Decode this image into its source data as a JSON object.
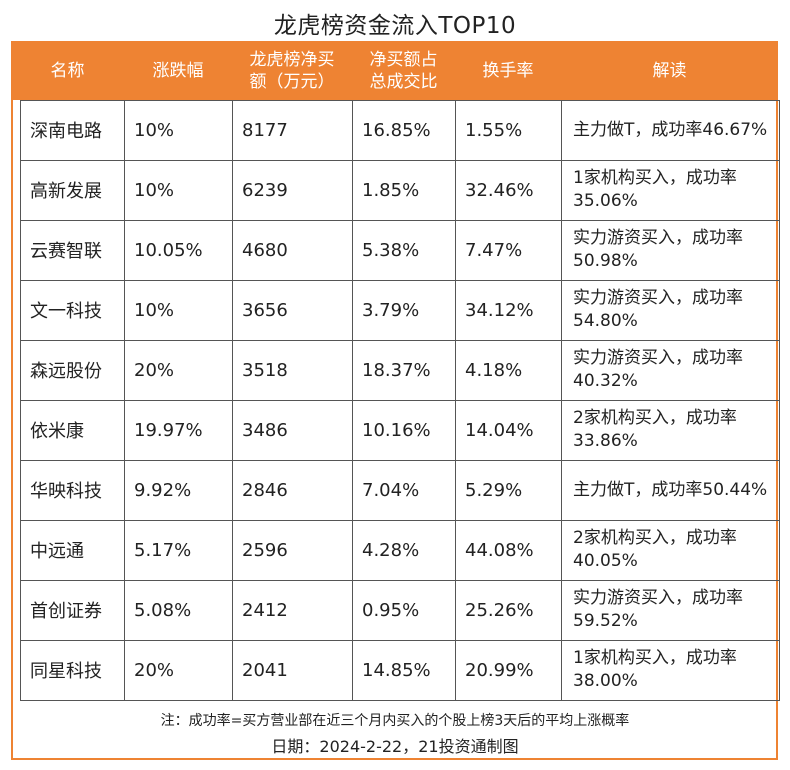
{
  "title": "龙虎榜资金流入TOP10",
  "headers": [
    "名称",
    "涨跌幅",
    "龙虎榜净买额（万元）",
    "净买额占总成交比",
    "换手率",
    "解读"
  ],
  "rows": [
    [
      "深南电路",
      "10%",
      "8177",
      "16.85%",
      "1.55%",
      "主力做T，成功率46.67%"
    ],
    [
      "高新发展",
      "10%",
      "6239",
      "1.85%",
      "32.46%",
      "1家机构买入，成功率35.06%"
    ],
    [
      "云赛智联",
      "10.05%",
      "4680",
      "5.38%",
      "7.47%",
      "实力游资买入，成功率50.98%"
    ],
    [
      "文一科技",
      "10%",
      "3656",
      "3.79%",
      "34.12%",
      "实力游资买入，成功率54.80%"
    ],
    [
      "森远股份",
      "20%",
      "3518",
      "18.37%",
      "4.18%",
      "实力游资买入，成功率40.32%"
    ],
    [
      "依米康",
      "19.97%",
      "3486",
      "10.16%",
      "14.04%",
      "2家机构买入，成功率33.86%"
    ],
    [
      "华映科技",
      "9.92%",
      "2846",
      "7.04%",
      "5.29%",
      "主力做T，成功率50.44%"
    ],
    [
      "中远通",
      "5.17%",
      "2596",
      "4.28%",
      "44.08%",
      "2家机构买入，成功率40.05%"
    ],
    [
      "首创证券",
      "5.08%",
      "2412",
      "0.95%",
      "25.26%",
      "实力游资买入，成功率59.52%"
    ],
    [
      "同星科技",
      "20%",
      "2041",
      "14.85%",
      "20.99%",
      "1家机构买入，成功率38.00%"
    ]
  ],
  "footnote": "注：成功率=买方营业部在近三个月内买入的个股上榜3天后的平均上涨概率",
  "date_line": "日期：2024-2-22，21投资通制图",
  "colors": {
    "accent": "#ee8333",
    "header_text": "#ffffff",
    "grid": "#555555"
  }
}
